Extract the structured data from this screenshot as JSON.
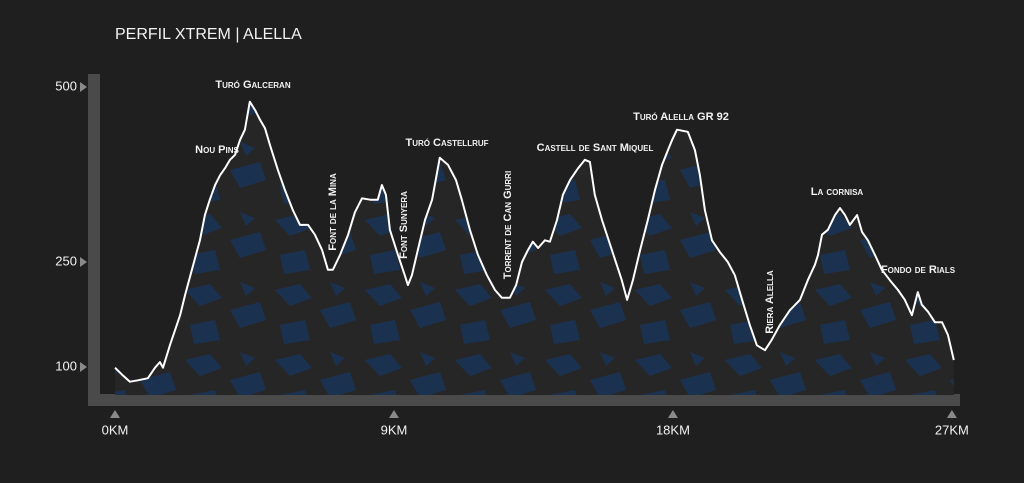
{
  "chart_data": {
    "type": "line",
    "title": "PERFIL XTREM | ALELLA",
    "x": [
      0,
      0.23,
      0.48,
      0.74,
      1.06,
      1.29,
      1.45,
      1.55,
      1.77,
      2.1,
      2.26,
      2.48,
      2.74,
      2.9,
      3.06,
      3.23,
      3.39,
      3.55,
      3.71,
      3.87,
      4.03,
      4.19,
      4.35,
      4.52,
      4.68,
      4.84,
      5.0,
      5.26,
      5.48,
      5.74,
      5.97,
      6.23,
      6.45,
      6.68,
      6.87,
      7.03,
      7.26,
      7.52,
      7.74,
      7.97,
      8.23,
      8.48,
      8.61,
      8.74,
      8.87,
      9.13,
      9.35,
      9.45,
      9.58,
      9.77,
      10.0,
      10.23,
      10.48,
      10.74,
      11.0,
      11.19,
      11.45,
      11.71,
      12.0,
      12.26,
      12.48,
      12.74,
      12.94,
      13.13,
      13.32,
      13.48,
      13.65,
      13.87,
      14.03,
      14.26,
      14.45,
      14.68,
      14.94,
      15.16,
      15.32,
      15.48,
      15.71,
      16.03,
      16.35,
      16.52,
      16.71,
      16.94,
      17.19,
      17.42,
      17.65,
      17.84,
      17.97,
      18.13,
      18.48,
      18.71,
      18.87,
      19.03,
      19.26,
      19.52,
      19.77,
      20.0,
      20.23,
      20.48,
      20.71,
      20.97,
      21.19,
      21.45,
      21.77,
      22.1,
      22.35,
      22.58,
      22.68,
      22.81,
      23.0,
      23.23,
      23.39,
      23.55,
      23.71,
      23.94,
      24.1,
      24.29,
      24.52,
      24.74,
      25.0,
      25.26,
      25.48,
      25.71,
      25.9,
      26.03,
      26.23,
      26.45,
      26.68,
      26.87,
      27.06
    ],
    "values": [
      99,
      89,
      79,
      81,
      84,
      99,
      107,
      99,
      131,
      174,
      203,
      239,
      281,
      317,
      339,
      360,
      374,
      384,
      396,
      403,
      424,
      439,
      479,
      467,
      453,
      441,
      417,
      381,
      353,
      324,
      303,
      303,
      289,
      267,
      239,
      239,
      260,
      289,
      321,
      341,
      339,
      339,
      360,
      346,
      296,
      260,
      231,
      217,
      231,
      267,
      310,
      339,
      399,
      389,
      367,
      339,
      296,
      260,
      231,
      210,
      199,
      199,
      217,
      250,
      267,
      279,
      270,
      281,
      279,
      310,
      346,
      367,
      384,
      396,
      393,
      346,
      310,
      267,
      224,
      196,
      224,
      267,
      310,
      353,
      389,
      410,
      424,
      439,
      436,
      410,
      374,
      324,
      281,
      264,
      250,
      231,
      196,
      160,
      131,
      124,
      139,
      160,
      181,
      196,
      224,
      246,
      260,
      289,
      296,
      317,
      327,
      317,
      303,
      317,
      293,
      281,
      260,
      239,
      224,
      210,
      196,
      174,
      207,
      189,
      179,
      164,
      164,
      146,
      110
    ],
    "color": "#ffffff",
    "xlim": [
      0,
      27.1
    ],
    "ylim": [
      60,
      510
    ],
    "xticks": [
      {
        "value": 0,
        "label": "0KM"
      },
      {
        "value": 9,
        "label": "9KM"
      },
      {
        "value": 18,
        "label": "18KM"
      },
      {
        "value": 27,
        "label": "27KM"
      }
    ],
    "yticks": [
      500,
      250,
      100
    ],
    "annotations": [
      "Turó Galceran",
      "Nou Pins",
      "Font de la Mina",
      "Font Sunyera",
      "Turó Castellruf",
      "Torrent de Can Gurri",
      "Castell de Sant Miquel",
      "Turó Alella GR 92",
      "Riera Alella",
      "La cornisa",
      "Fondo de Rials"
    ]
  }
}
